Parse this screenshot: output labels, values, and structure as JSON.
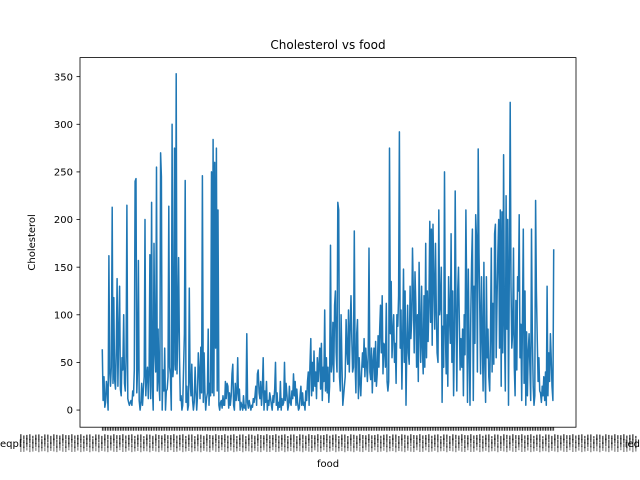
{
  "chart_data": {
    "type": "line",
    "title": "Cholesterol vs food",
    "xlabel": "food",
    "ylabel": "Cholesterol",
    "ylim": [
      -18,
      370
    ],
    "yticks": [
      0,
      50,
      100,
      150,
      200,
      250,
      300,
      350
    ],
    "grid": false,
    "legend": "none",
    "x_tick_labels_note": "",
    "x_tick_label_visible_fragments": [
      "eqpl",
      "ied"
    ],
    "series": [
      {
        "color": "#1f77b4",
        "values": [
          63,
          10,
          35,
          3,
          8,
          30,
          22,
          0,
          162,
          40,
          25,
          45,
          213,
          28,
          118,
          32,
          22,
          65,
          138,
          25,
          78,
          130,
          22,
          15,
          55,
          42,
          100,
          28,
          20,
          56,
          215,
          12,
          8,
          5,
          8,
          10,
          5,
          20,
          15,
          42,
          240,
          243,
          18,
          45,
          157,
          10,
          0,
          8,
          28,
          5,
          22,
          35,
          200,
          15,
          35,
          45,
          12,
          38,
          163,
          12,
          218,
          25,
          0,
          175,
          62,
          40,
          255,
          20,
          85,
          30,
          10,
          270,
          245,
          0,
          42,
          20,
          65,
          0,
          20,
          22,
          35,
          214,
          45,
          37,
          0,
          300,
          35,
          48,
          275,
          42,
          353,
          38,
          85,
          160,
          55,
          10,
          15,
          0,
          5,
          45,
          80,
          241,
          8,
          25,
          0,
          5,
          128,
          30,
          15,
          48,
          10,
          0,
          8,
          45,
          20,
          0,
          15,
          60,
          40,
          12,
          66,
          18,
          246,
          8,
          60,
          20,
          0,
          12,
          18,
          85,
          5,
          28,
          15,
          250,
          18,
          284,
          15,
          260,
          65,
          275,
          20,
          210,
          5,
          0,
          8,
          10,
          2,
          15,
          5,
          5,
          30,
          12,
          28,
          25,
          2,
          18,
          5,
          15,
          38,
          48,
          5,
          0,
          28,
          10,
          18,
          55,
          10,
          22,
          0,
          8,
          5,
          0,
          15,
          2,
          5,
          0,
          80,
          8,
          2,
          10,
          5,
          0,
          5,
          3,
          12,
          8,
          15,
          25,
          5,
          38,
          42,
          18,
          12,
          30,
          5,
          20,
          55,
          0,
          20,
          8,
          30,
          0,
          10,
          5,
          18,
          12,
          5,
          0,
          15,
          8,
          22,
          50,
          5,
          18,
          0,
          8,
          3,
          30,
          0,
          12,
          5,
          8,
          50,
          10,
          28,
          15,
          0,
          5,
          25,
          8,
          5,
          20,
          12,
          38,
          15,
          30,
          5,
          22,
          8,
          0,
          2,
          15,
          25,
          5,
          18,
          5,
          8,
          0,
          20,
          10,
          30,
          40,
          5,
          45,
          75,
          15,
          50,
          20,
          62,
          25,
          40,
          12,
          55,
          30,
          48,
          65,
          22,
          70,
          10,
          45,
          30,
          105,
          20,
          55,
          18,
          45,
          8,
          25,
          173,
          40,
          50,
          92,
          30,
          110,
          125,
          60,
          40,
          218,
          210,
          35,
          20,
          100,
          45,
          5,
          15,
          25,
          35,
          95,
          62,
          48,
          105,
          40,
          88,
          120,
          75,
          40,
          45,
          188,
          50,
          18,
          80,
          95,
          12,
          55,
          30,
          15,
          40,
          60,
          45,
          75,
          35,
          65,
          48,
          30,
          58,
          170,
          40,
          32,
          65,
          18,
          50,
          65,
          30,
          72,
          25,
          38,
          78,
          45,
          85,
          110,
          60,
          120,
          38,
          70,
          68,
          45,
          112,
          30,
          20,
          30,
          275,
          80,
          135,
          55,
          80,
          100,
          50,
          70,
          28,
          100,
          88,
          120,
          292,
          65,
          105,
          22,
          75,
          148,
          50,
          125,
          5,
          65,
          110,
          60,
          48,
          130,
          75,
          95,
          170,
          125,
          60,
          145,
          112,
          45,
          100,
          30,
          155,
          90,
          50,
          130,
          65,
          38,
          120,
          45,
          175,
          55,
          125,
          72,
          110,
          198,
          92,
          190,
          68,
          195,
          130,
          85,
          175,
          105,
          60,
          50,
          210,
          100,
          110,
          150,
          8,
          88,
          45,
          250,
          80,
          38,
          100,
          25,
          140,
          98,
          70,
          185,
          50,
          125,
          15,
          78,
          230,
          108,
          20,
          125,
          150,
          95,
          42,
          75,
          45,
          85,
          15,
          100,
          58,
          210,
          120,
          8,
          148,
          60,
          5,
          100,
          155,
          190,
          10,
          130,
          70,
          205,
          180,
          40,
          274,
          165,
          105,
          38,
          140,
          78,
          20,
          155,
          52,
          8,
          140,
          55,
          85,
          35,
          20,
          80,
          170,
          40,
          112,
          48,
          185,
          195,
          55,
          120,
          165,
          200,
          65,
          210,
          25,
          208,
          60,
          268,
          90,
          20,
          225,
          85,
          200,
          5,
          160,
          323,
          130,
          65,
          80,
          170,
          45,
          15,
          115,
          42,
          140,
          125,
          205,
          55,
          90,
          10,
          100,
          190,
          28,
          125,
          5,
          82,
          15,
          60,
          80,
          45,
          10,
          190,
          82,
          25,
          5,
          15,
          220,
          125,
          72,
          30,
          55,
          20,
          18,
          8,
          25,
          15,
          35,
          10,
          40,
          5,
          130,
          15,
          60,
          30,
          80,
          55,
          25,
          10,
          168
        ]
      }
    ]
  }
}
